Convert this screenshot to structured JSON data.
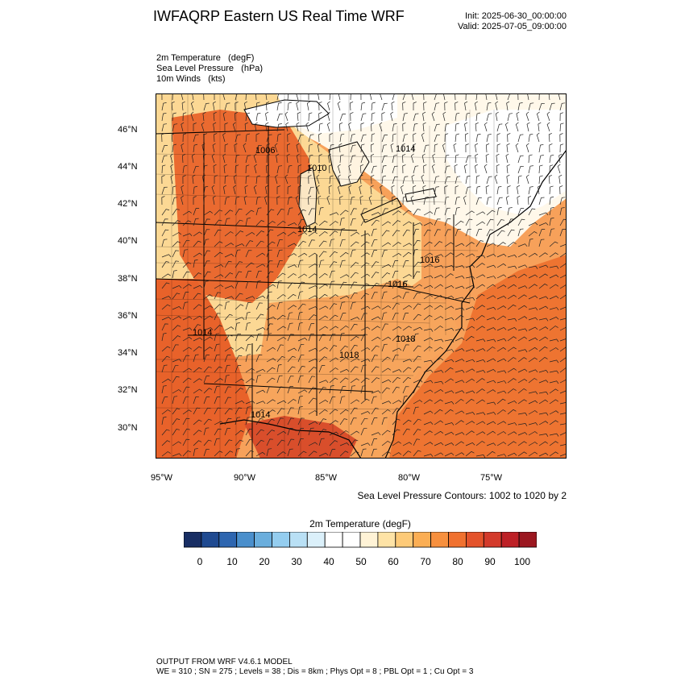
{
  "header": {
    "title": "IWFAQRP Eastern US Real Time WRF",
    "init": "Init: 2025-06-30_00:00:00",
    "valid": "Valid: 2025-07-05_09:00:00"
  },
  "fields": [
    "2m Temperature   (degF)",
    "Sea Level Pressure   (hPa)",
    "10m Winds   (kts)"
  ],
  "map": {
    "lat_labels": [
      "46°N",
      "44°N",
      "42°N",
      "40°N",
      "38°N",
      "36°N",
      "34°N",
      "32°N",
      "30°N"
    ],
    "lon_labels": [
      "95°W",
      "90°W",
      "85°W",
      "80°W",
      "75°W"
    ],
    "pressure_labels": [
      "1006",
      "1010",
      "1014",
      "1014",
      "1014",
      "1016",
      "1016",
      "1018",
      "1018",
      "1014"
    ],
    "colors": {
      "hot": "#e8622a",
      "warm": "#f4a356",
      "mild": "#fddfa4",
      "cool": "#ffffff",
      "gulf": "#d94e2b"
    }
  },
  "contour_note": "Sea Level Pressure Contours: 1002 to 1020 by 2",
  "colorbar": {
    "title": "2m Temperature  (degF)",
    "labels": [
      "0",
      "10",
      "20",
      "30",
      "40",
      "50",
      "60",
      "70",
      "80",
      "90",
      "100"
    ],
    "colors": [
      "#182e64",
      "#1f4a91",
      "#2e66b0",
      "#4a8fcc",
      "#6aaedd",
      "#94cdef",
      "#b9e0f5",
      "#dbf0fa",
      "#ffffff",
      "#ffffff",
      "#fff3d6",
      "#fee3a6",
      "#fdca78",
      "#fbae54",
      "#f7903e",
      "#f0712f",
      "#e4532b",
      "#d33a2b",
      "#bd2026",
      "#9b1720"
    ]
  },
  "footer": {
    "line1": "OUTPUT FROM WRF V4.6.1 MODEL",
    "line2": "WE = 310 ; SN = 275 ; Levels = 38 ; Dis = 8km ; Phys Opt = 8 ; PBL Opt = 1 ; Cu Opt = 3"
  }
}
